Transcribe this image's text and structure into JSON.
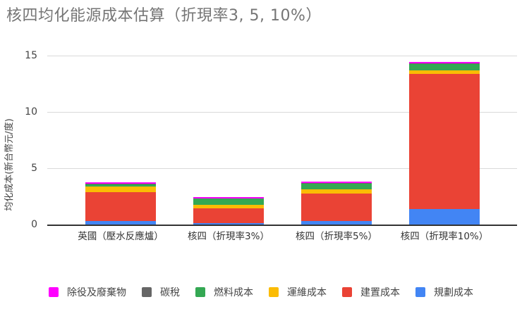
{
  "chart_data": {
    "type": "bar",
    "stacked": true,
    "title": "核四均化能源成本估算（折現率3, 5, 10%）",
    "xlabel": "",
    "ylabel": "均化成本(新台幣元/度)",
    "ylim": [
      0,
      15
    ],
    "yticks": [
      0,
      5,
      10,
      15
    ],
    "grid": true,
    "legend_position": "bottom",
    "categories": [
      "英國（壓水反應爐）",
      "核四（折現率3%）",
      "核四（折現率5%）",
      "核四（折現率10%）"
    ],
    "series": [
      {
        "name": "規劃成本",
        "color": "#4285f4",
        "values": [
          0.3,
          0.12,
          0.3,
          1.35
        ]
      },
      {
        "name": "建置成本",
        "color": "#ea4335",
        "values": [
          2.55,
          1.32,
          2.45,
          12.05
        ]
      },
      {
        "name": "運維成本",
        "color": "#fbbc04",
        "values": [
          0.55,
          0.3,
          0.4,
          0.3
        ]
      },
      {
        "name": "燃料成本",
        "color": "#34a853",
        "values": [
          0.15,
          0.55,
          0.5,
          0.55
        ]
      },
      {
        "name": "碳稅",
        "color": "#666666",
        "values": [
          0.1,
          0.02,
          0.07,
          0.07
        ]
      },
      {
        "name": "除役及廢棄物",
        "color": "#ff00ff",
        "values": [
          0.1,
          0.1,
          0.1,
          0.12
        ]
      }
    ],
    "legend_order": [
      "除役及廢棄物",
      "碳稅",
      "燃料成本",
      "運維成本",
      "建置成本",
      "規劃成本"
    ]
  }
}
